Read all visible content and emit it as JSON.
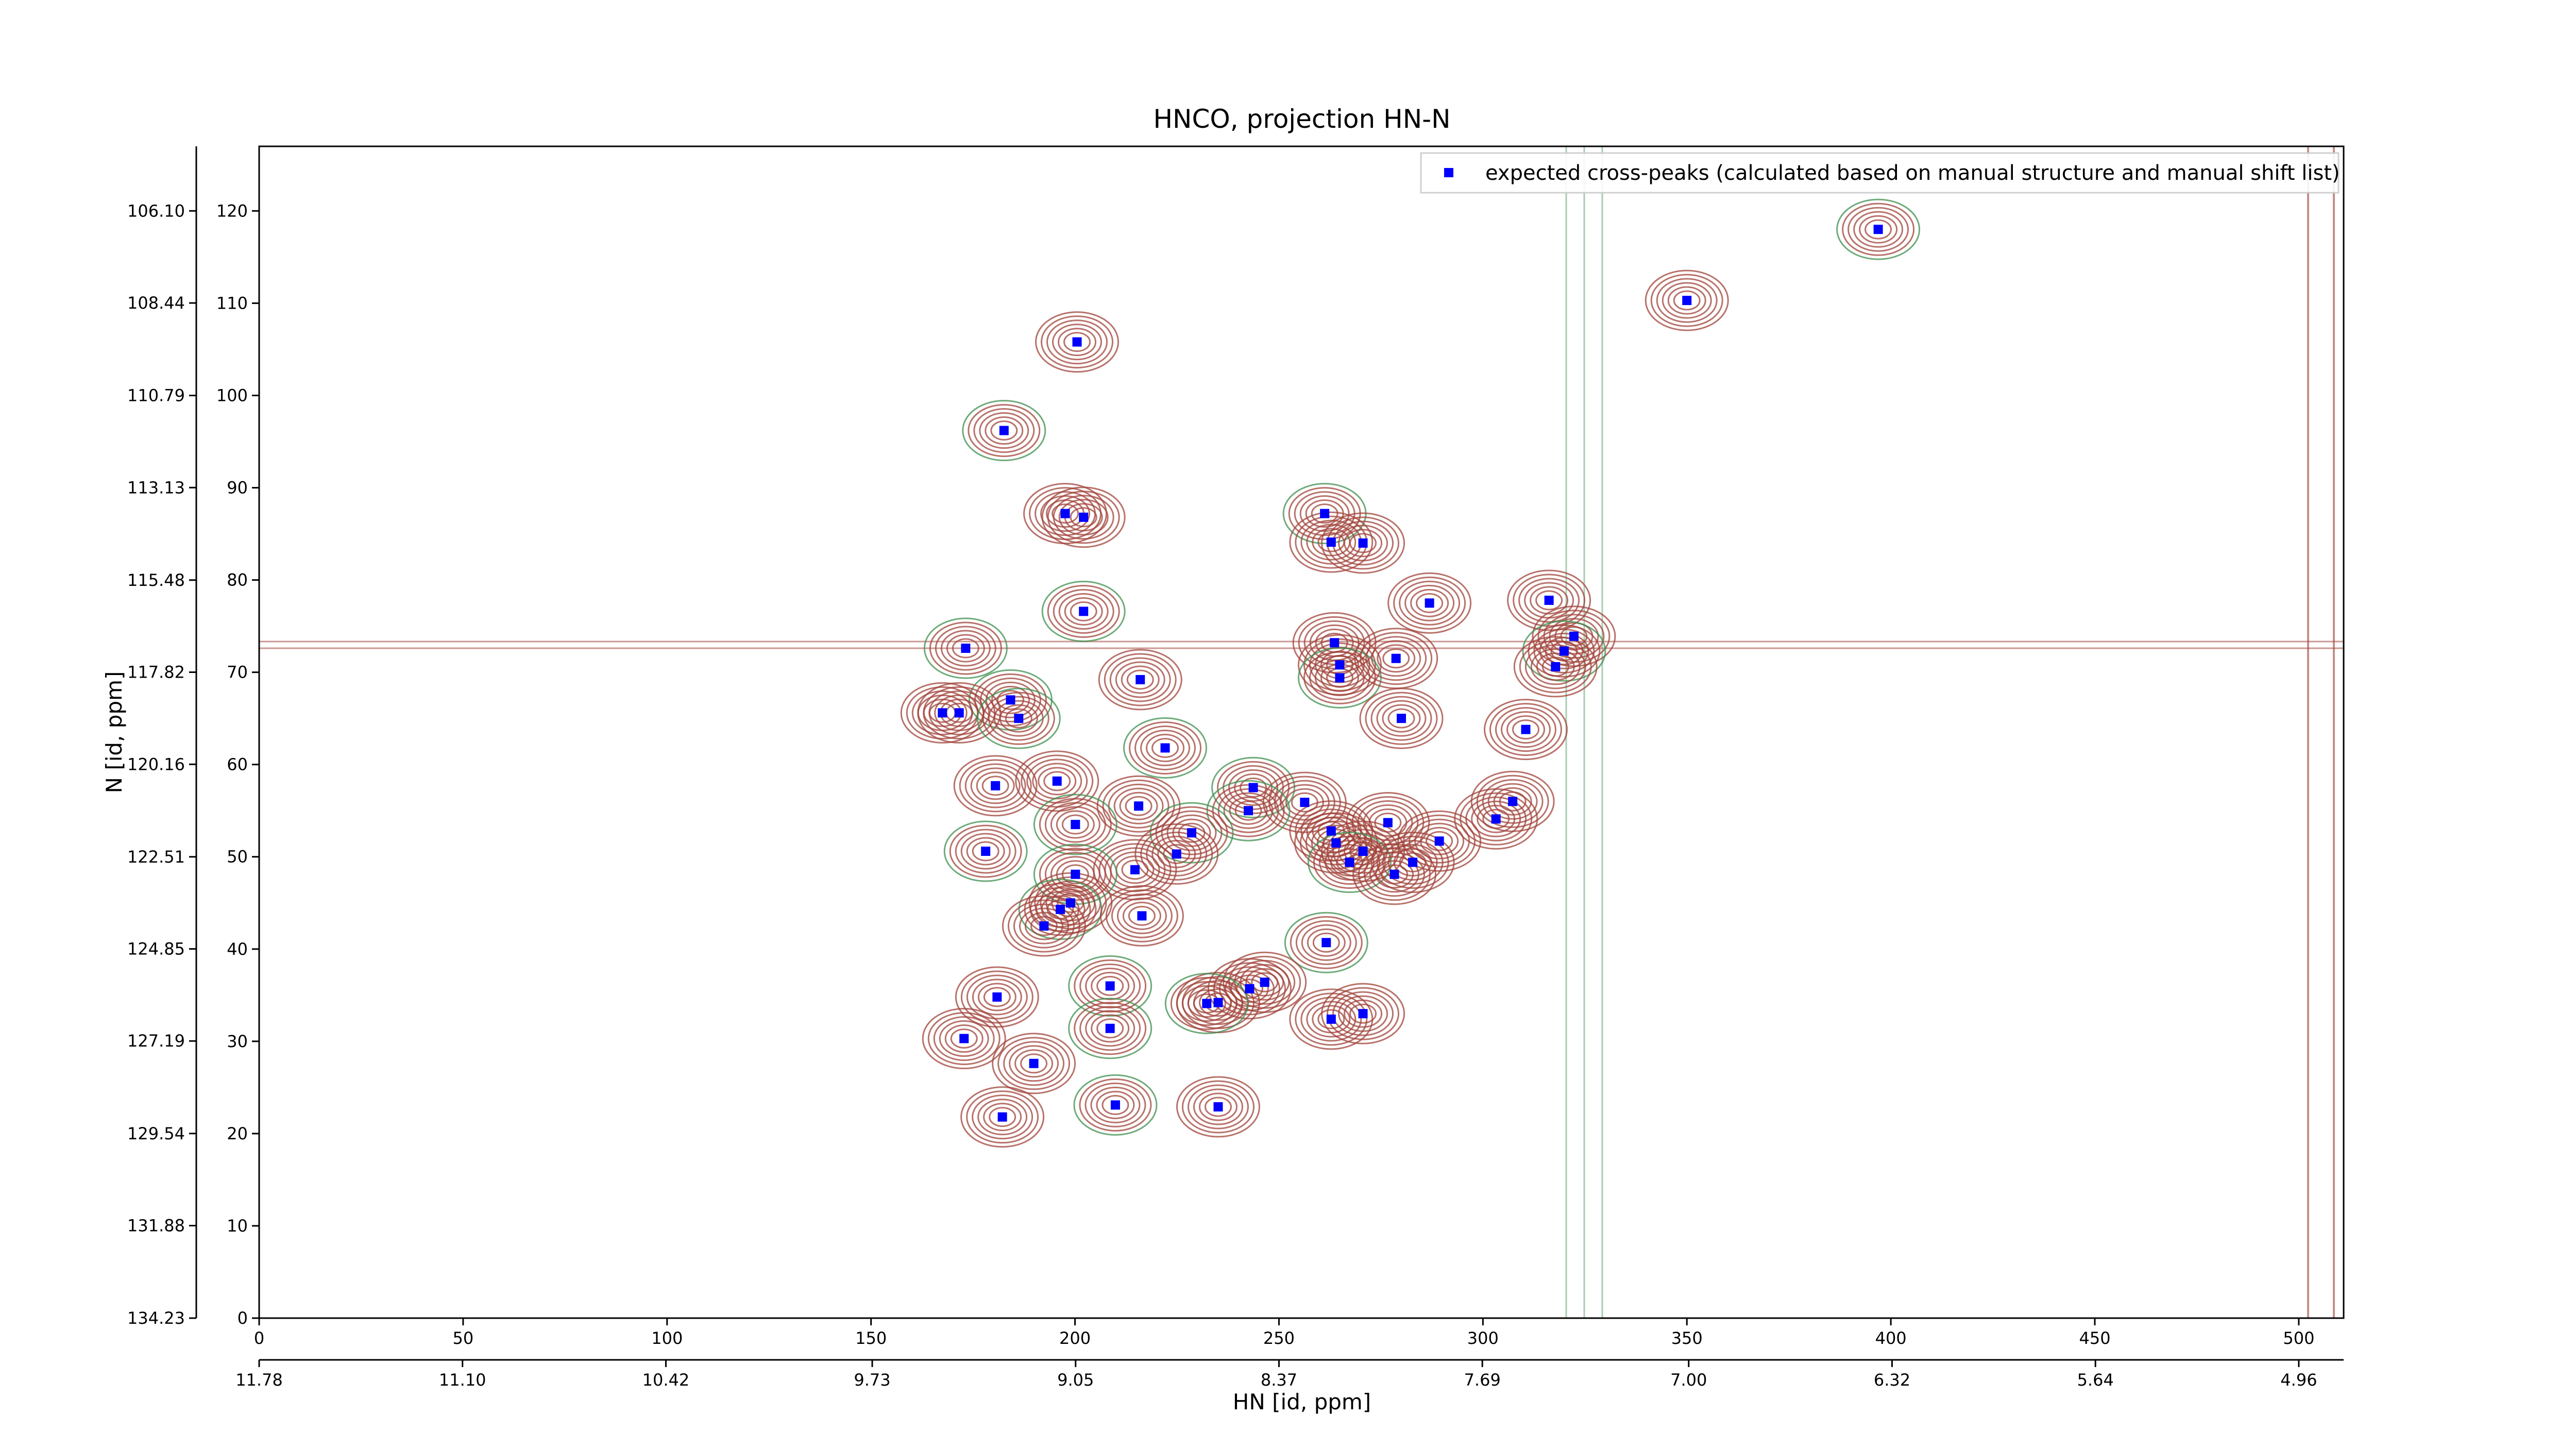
{
  "chart_data": {
    "type": "scatter",
    "title": "HNCO, projection HN-N",
    "xlabel": "HN [id, ppm]",
    "ylabel": "N [id, ppm]",
    "xlim": [
      0,
      511
    ],
    "ylim": [
      0,
      127
    ],
    "xticks": [
      0,
      50,
      100,
      150,
      200,
      250,
      300,
      350,
      400,
      450,
      500
    ],
    "yticks": [
      0,
      10,
      20,
      30,
      40,
      50,
      60,
      70,
      80,
      90,
      100,
      110,
      120
    ],
    "x2lim": [
      11.78,
      4.81
    ],
    "x2ticks": [
      11.78,
      {
        "value": 11.1,
        "label": "11.10"
      },
      10.42,
      9.73,
      9.05,
      8.37,
      7.69,
      {
        "value": 7,
        "label": "7.00"
      },
      6.32,
      5.64,
      4.96
    ],
    "y2lim": [
      134.23,
      104.46
    ],
    "y2ticks": [
      134.23,
      131.88,
      129.54,
      127.19,
      124.85,
      122.51,
      120.16,
      117.82,
      115.48,
      113.13,
      110.79,
      108.44,
      {
        "value": 106.1,
        "label": "106.10"
      }
    ],
    "legend": "upper right",
    "grid": false,
    "series": [
      {
        "name": "expected cross-peaks (calculated based on manual structure and manual shift list)",
        "color": "#0000ff",
        "x": [
          396.9,
          350.0,
          200.5,
          182.6,
          197.6,
          202.1,
          261.2,
          262.8,
          270.6,
          202.1,
          286.9,
          316.2,
          173.2,
          263.6,
          264.9,
          264.9,
          278.7,
          322.3,
          319.9,
          317.8,
          216.0,
          184.2,
          167.5,
          171.6,
          186.2,
          280.0,
          310.5,
          222.1,
          195.6,
          180.5,
          243.7,
          256.3,
          215.6,
          242.5,
          307.3,
          303.2,
          200.1,
          276.7,
          262.8,
          228.6,
          264.0,
          289.3,
          178.1,
          224.9,
          270.6,
          267.3,
          282.8,
          214.7,
          200.1,
          278.3,
          198.9,
          196.4,
          216.4,
          192.4,
          261.6,
          246.5,
          242.8,
          208.6,
          180.9,
          235.1,
          232.3,
          262.8,
          270.6,
          208.6,
          172.8,
          189.9,
          209.9,
          235.1,
          182.2
        ],
        "values": [
          118.0,
          110.3,
          105.8,
          96.2,
          87.2,
          86.8,
          87.2,
          84.1,
          84.0,
          76.6,
          77.5,
          77.8,
          72.6,
          73.2,
          70.8,
          69.4,
          71.5,
          73.9,
          72.3,
          70.6,
          69.2,
          67.0,
          65.6,
          65.6,
          65.0,
          65.0,
          63.8,
          61.8,
          58.2,
          57.7,
          57.5,
          55.9,
          55.5,
          55.0,
          56.0,
          54.1,
          53.5,
          53.7,
          52.8,
          52.6,
          51.5,
          51.7,
          50.6,
          50.3,
          50.6,
          49.4,
          49.4,
          48.6,
          48.1,
          48.1,
          45.0,
          44.3,
          43.6,
          42.5,
          40.7,
          36.4,
          35.7,
          36.0,
          34.8,
          34.2,
          34.1,
          32.4,
          33.0,
          31.4,
          30.3,
          27.6,
          23.1,
          22.9,
          21.8
        ]
      }
    ]
  }
}
